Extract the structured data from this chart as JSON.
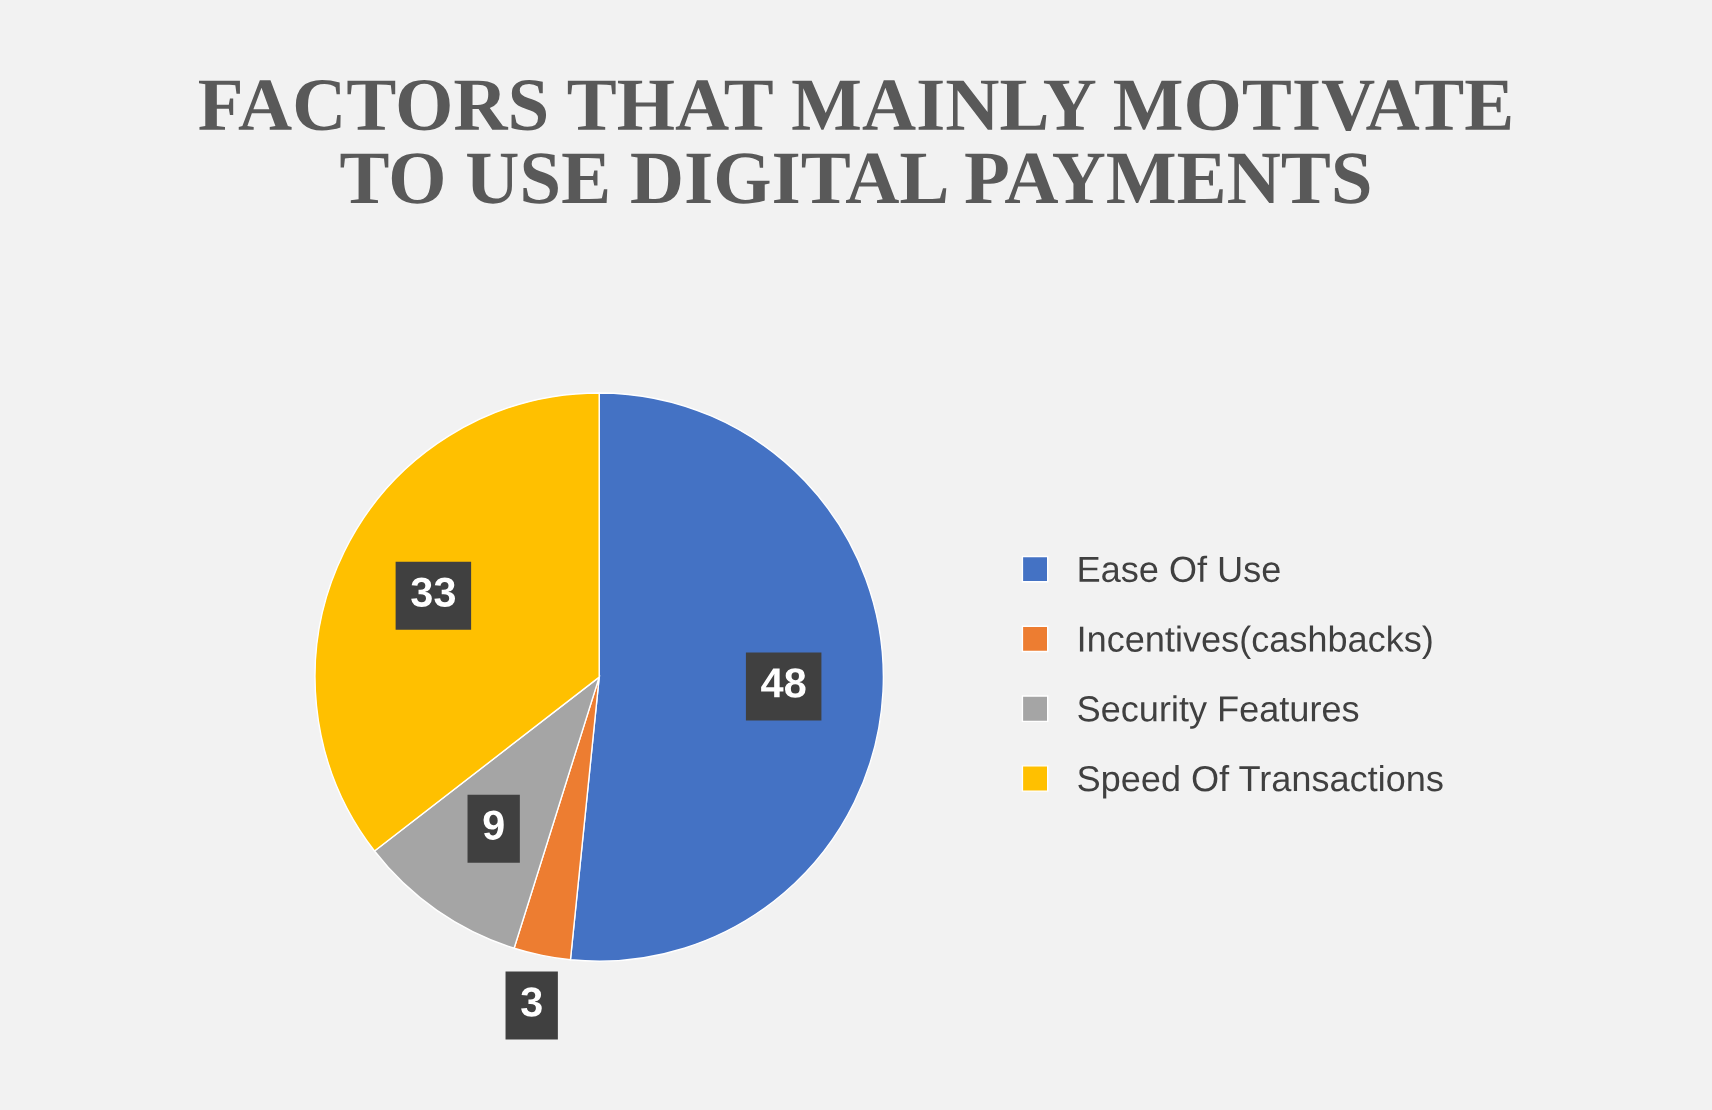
{
  "chart_data": {
    "type": "pie",
    "title": "FACTORS THAT MAINLY MOTIVATE\nTO USE DIGITAL PAYMENTS",
    "categories": [
      "Ease Of Use",
      "Incentives(cashbacks)",
      "Security Features",
      "Speed Of Transactions"
    ],
    "values": [
      48,
      3,
      9,
      33
    ],
    "colors": [
      "#4472c4",
      "#ed7d31",
      "#a5a5a5",
      "#ffc000"
    ],
    "data_labels": true,
    "legend": "right"
  }
}
